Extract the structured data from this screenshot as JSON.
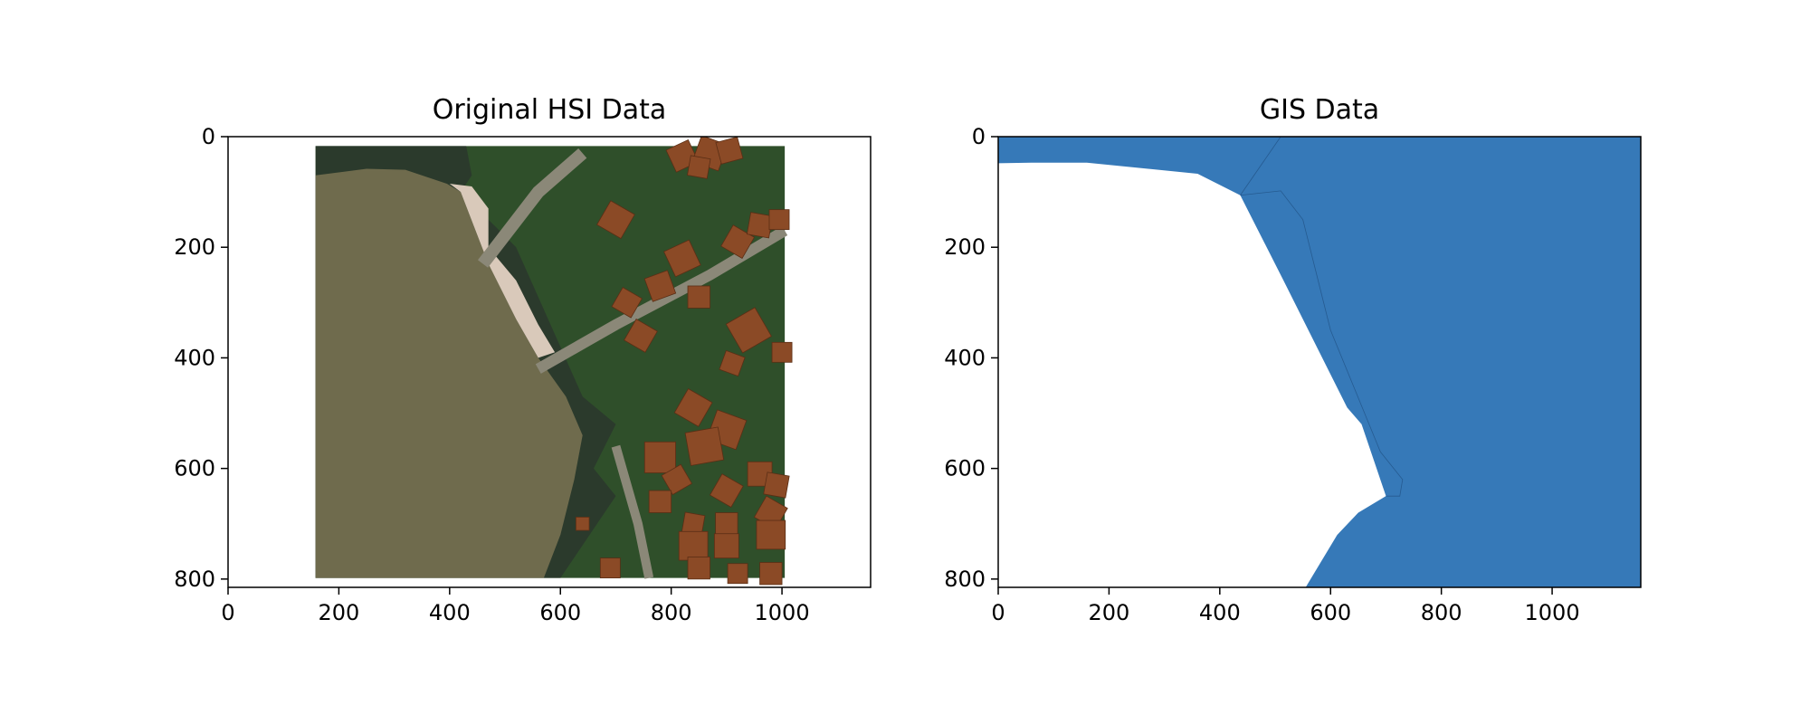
{
  "figure": {
    "background": "#ffffff"
  },
  "chart_data": [
    {
      "type": "image",
      "title": "Original HSI Data",
      "xlim": [
        0,
        1160
      ],
      "ylim": [
        815,
        0
      ],
      "x_ticks": [
        0,
        200,
        400,
        600,
        800,
        1000
      ],
      "y_ticks": [
        0,
        200,
        400,
        600,
        800
      ],
      "image_extent": {
        "x": [
          158,
          1005
        ],
        "y": [
          17,
          798
        ]
      },
      "colors": {
        "water": "#6f6b4d",
        "water_edge": "#2b3a2c",
        "sand": "#d9c9ba",
        "vegetation": "#2f4f2a",
        "road": "#8b8878",
        "building": "#8b4a26"
      }
    },
    {
      "type": "filled_polygon",
      "title": "GIS Data",
      "xlim": [
        0,
        1160
      ],
      "ylim": [
        815,
        0
      ],
      "x_ticks": [
        0,
        200,
        400,
        600,
        800,
        1000
      ],
      "y_ticks": [
        0,
        200,
        400,
        600,
        800
      ],
      "fill_color": "#3679b8",
      "unfilled_region": [
        [
          0,
          48
        ],
        [
          60,
          47
        ],
        [
          160,
          47
        ],
        [
          360,
          67
        ],
        [
          437,
          106
        ],
        [
          515,
          260
        ],
        [
          630,
          490
        ],
        [
          656,
          520
        ],
        [
          700,
          650
        ],
        [
          650,
          680
        ],
        [
          612,
          720
        ],
        [
          555,
          815
        ],
        [
          0,
          815
        ]
      ],
      "inner_boundary": [
        [
          437,
          106
        ],
        [
          510,
          98
        ],
        [
          550,
          150
        ],
        [
          600,
          350
        ],
        [
          690,
          570
        ],
        [
          730,
          620
        ],
        [
          725,
          650
        ],
        [
          700,
          650
        ]
      ],
      "divider": [
        [
          437,
          106
        ],
        [
          510,
          0
        ]
      ]
    }
  ]
}
